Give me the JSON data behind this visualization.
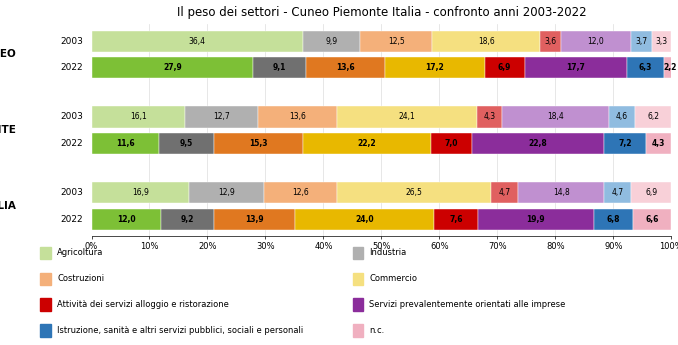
{
  "title": "Il peso dei settori - Cuneo Piemonte Italia - confronto anni 2003-2022",
  "rows": [
    {
      "group": "CUNEO",
      "year": "2003",
      "values": [
        36.4,
        9.9,
        12.5,
        18.6,
        3.6,
        12.0,
        3.7,
        3.3
      ],
      "bold": false
    },
    {
      "group": "CUNEO",
      "year": "2022",
      "values": [
        27.9,
        9.1,
        13.6,
        17.2,
        6.9,
        17.7,
        6.3,
        2.2
      ],
      "bold": true
    },
    {
      "group": "PIEMONTE",
      "year": "2003",
      "values": [
        16.1,
        12.7,
        13.6,
        24.1,
        4.3,
        18.4,
        4.6,
        6.2
      ],
      "bold": false
    },
    {
      "group": "PIEMONTE",
      "year": "2022",
      "values": [
        11.6,
        9.5,
        15.3,
        22.2,
        7.0,
        22.8,
        7.2,
        4.3
      ],
      "bold": true
    },
    {
      "group": "ITALIA",
      "year": "2003",
      "values": [
        16.9,
        12.9,
        12.6,
        26.5,
        4.7,
        14.8,
        4.7,
        6.9
      ],
      "bold": false
    },
    {
      "group": "ITALIA",
      "year": "2022",
      "values": [
        12.0,
        9.2,
        13.9,
        24.0,
        7.6,
        19.9,
        6.8,
        6.6
      ],
      "bold": true
    }
  ],
  "sectors": [
    "Agricoltura",
    "Industria",
    "Costruzioni",
    "Commercio",
    "Attività dei servizi alloggio e ristorazione",
    "Servizi prevalentemente orientati alle imprese",
    "Istruzione, sanità e altri servizi pubblici, sociali e personali",
    "n.c."
  ],
  "colors_normal": [
    "#c5e09a",
    "#b0b0b0",
    "#f4b07a",
    "#f5e080",
    "#e06060",
    "#c090d0",
    "#90bce0",
    "#f8d0d8"
  ],
  "colors_bold": [
    "#7dc036",
    "#707070",
    "#e07820",
    "#e8b800",
    "#cc0000",
    "#8b2d9b",
    "#2e75b6",
    "#f0b0c0"
  ],
  "background_color": "#ffffff",
  "title_fontsize": 8.5,
  "bar_height": 0.32,
  "group_names": [
    "CUNEO",
    "PIEMONTE",
    "ITALIA"
  ],
  "legend_items": [
    [
      "Agricoltura",
      "#c5e09a"
    ],
    [
      "Industria",
      "#b0b0b0"
    ],
    [
      "Costruzioni",
      "#f4b07a"
    ],
    [
      "Commercio",
      "#f5e080"
    ],
    [
      "Attività dei servizi alloggio e ristorazione",
      "#cc0000"
    ],
    [
      "Servizi prevalentemente orientati alle imprese",
      "#8b2d9b"
    ],
    [
      "Istruzione, sanità e altri servizi pubblici, sociali e personali",
      "#2e75b6"
    ],
    [
      "n.c.",
      "#f0b0c0"
    ]
  ]
}
